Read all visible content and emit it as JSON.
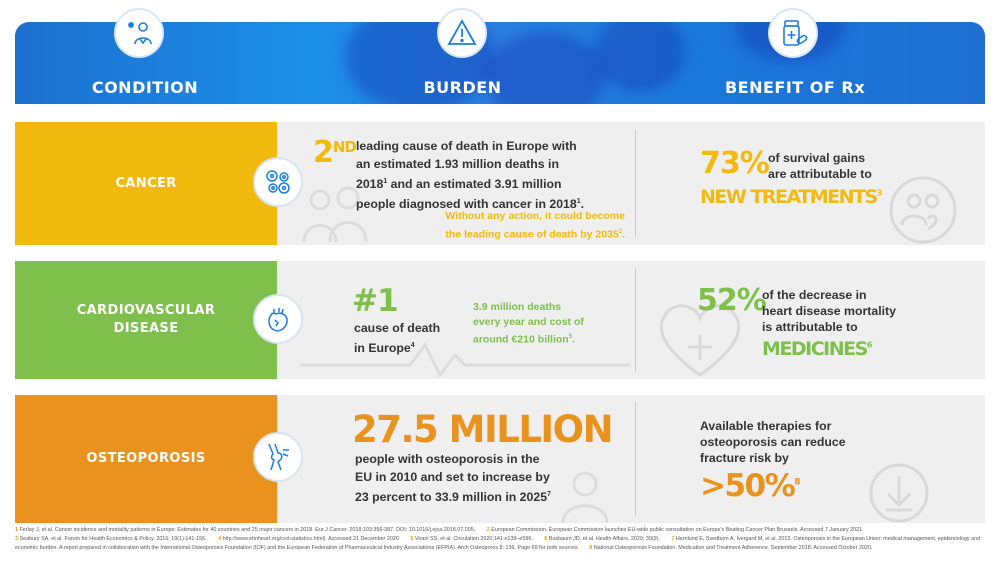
{
  "header": {
    "condition": "CONDITION",
    "burden": "BURDEN",
    "benefit": "BENEFIT OF Rx"
  },
  "colors": {
    "cancer": "#f2b90f",
    "cardio": "#7ec04b",
    "osteo": "#ea921e",
    "header_blue": "#1b7fe0"
  },
  "rows": {
    "cancer": {
      "condition": "CANCER",
      "burden_num": "2",
      "burden_sup": "ND",
      "burden_line1": "leading cause of death in Europe with",
      "burden_line2": "an estimated 1.93 million deaths in",
      "burden_line3a": "2018",
      "burden_line3sup": "1",
      "burden_line3b": " and an estimated 3.91 million",
      "burden_line4a": "people diagnosed with cancer in 2018",
      "burden_line4sup": "1",
      "burden_line4b": ".",
      "warn_line1": "Without any action, it could become",
      "warn_line2a": "the leading cause of death by 2035",
      "warn_line2sup": "2",
      "warn_line2b": ".",
      "benefit_pct": "73%",
      "benefit_line1": "of survival gains",
      "benefit_line2": "are attributable to",
      "benefit_big": "NEW TREATMENTS",
      "benefit_sup": "3"
    },
    "cardio": {
      "condition_line1": "CARDIOVASCULAR",
      "condition_line2": "DISEASE",
      "burden_big": "#1",
      "burden_line1": "cause of death",
      "burden_line2": "in Europe",
      "burden_sup": "4",
      "cost_line1": "3.9 million deaths",
      "cost_line2": "every year and cost of",
      "cost_line3": "around €210 billion",
      "cost_sup": "5",
      "cost_end": ".",
      "benefit_pct": "52%",
      "benefit_line1": "of the decrease in",
      "benefit_line2": "heart disease mortality",
      "benefit_line3": "is attributable to",
      "benefit_big": "MEDICINES",
      "benefit_sup": "6"
    },
    "osteo": {
      "condition": "OSTEOPOROSIS",
      "burden_big": "27.5 MILLION",
      "burden_line1": "people with osteoporosis in the",
      "burden_line2": "EU in 2010 and set to increase by",
      "burden_line3": "23 percent to 33.9 million in 2025",
      "burden_sup": "7",
      "benefit_line1": "Available therapies for",
      "benefit_line2": "osteoporosis can reduce",
      "benefit_line3": "fracture risk by",
      "benefit_big": ">50%",
      "benefit_sup": "8"
    }
  },
  "footnotes": [
    {
      "n": "1",
      "text": "Ferlay J, et al. Cancer incidence and mortality patterns in Europe: Estimates for 40 countries and 25 major cancers in 2018. Eur J Cancer. 2018;103:356-387. DOI: 10.1016/j.ejca.2018.07.005."
    },
    {
      "n": "2",
      "text": "European Commission. European Commission launches EU-wide public consultation on Europe's Beating Cancer Plan Brussels. Accessed 7 January 2021"
    },
    {
      "n": "3",
      "text": "Seabury SA, et al. Forum for Health Economics & Policy. 2016; 19(1):141-156."
    },
    {
      "n": "4",
      "text": "http://www.ehnheart.org/cvd-statistics.html). Accessed 21 December 2020"
    },
    {
      "n": "5",
      "text": "Virani SS, et al. Circulation 2020;141:e139–e596."
    },
    {
      "n": "6",
      "text": "Buxbaum JD, et al. Health Affairs. 2020; 39(9)."
    },
    {
      "n": "7",
      "text": "Hernlund E, Svedbom A, Ivergard M, et al. 2013. Osteoporosis in the European Union: medical management, epidemiology and economic burden. A report prepared in collaboration with the International Osteoporosis Foundation (IOF) and the European Federation of Pharmaceutical Industry Associations (EFPIA). Arch Osteoporos 8: 136. Page 69 for both sources"
    },
    {
      "n": "8",
      "text": "National Osteoporosis Foundation. Medication and Treatment Adherence. September 2018. Accessed October 2020."
    }
  ]
}
